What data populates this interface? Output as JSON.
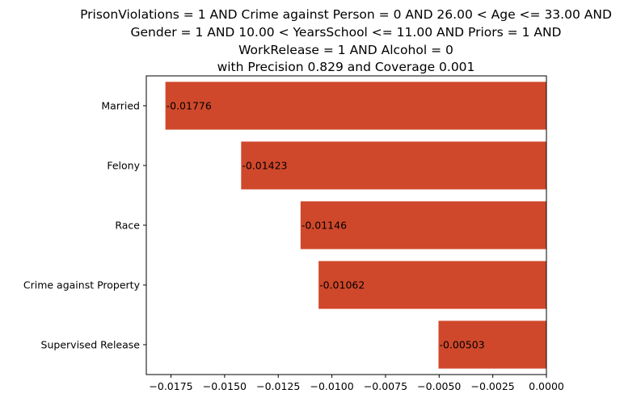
{
  "chart_data": {
    "type": "bar",
    "orientation": "horizontal",
    "title_lines": [
      "PrisonViolations = 1 AND Crime against Person = 0 AND 26.00 < Age <= 33.00 AND",
      "Gender = 1 AND 10.00 < YearsSchool <= 11.00 AND Priors = 1 AND",
      "WorkRelease = 1 AND Alcohol = 0",
      "with Precision 0.829 and Coverage 0.001"
    ],
    "categories": [
      "Married",
      "Felony",
      "Race",
      "Crime against Property",
      "Supervised Release"
    ],
    "values": [
      -0.01776,
      -0.01423,
      -0.01146,
      -0.01062,
      -0.00503
    ],
    "value_labels": [
      "-0.01776",
      "-0.01423",
      "-0.01146",
      "-0.01062",
      "-0.00503"
    ],
    "xlim": [
      -0.01865,
      0.0
    ],
    "xticks": [
      -0.0175,
      -0.015,
      -0.0125,
      -0.01,
      -0.0075,
      -0.005,
      -0.0025,
      0.0
    ],
    "xtick_labels": [
      "−0.0175",
      "−0.0150",
      "−0.0125",
      "−0.0100",
      "−0.0075",
      "−0.0050",
      "−0.0025",
      "0.0000"
    ],
    "bar_color": "#d0482b",
    "grid": false,
    "legend": "none"
  }
}
